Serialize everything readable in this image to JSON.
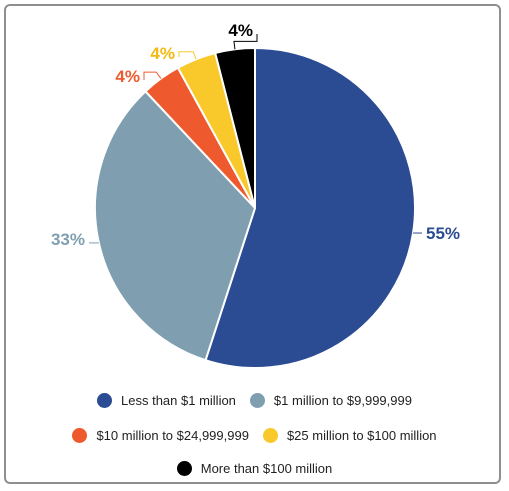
{
  "chart_data": {
    "type": "pie",
    "title": "",
    "slices": [
      {
        "label": "Less than $1 million",
        "value": 55,
        "display": "55%",
        "color": "#2b4c93"
      },
      {
        "label": "$1 million to $9,999,999",
        "value": 33,
        "display": "33%",
        "color": "#7f9fb1"
      },
      {
        "label": "$10 million to $24,999,999",
        "value": 4,
        "display": "4%",
        "color": "#ee5a2e"
      },
      {
        "label": "$25 million to $100 million",
        "value": 4,
        "display": "4%",
        "color": "#f9c92c"
      },
      {
        "label": "More than $100 million",
        "value": 4,
        "display": "4%",
        "color": "#000000"
      }
    ],
    "legend_placement": "bottom"
  }
}
